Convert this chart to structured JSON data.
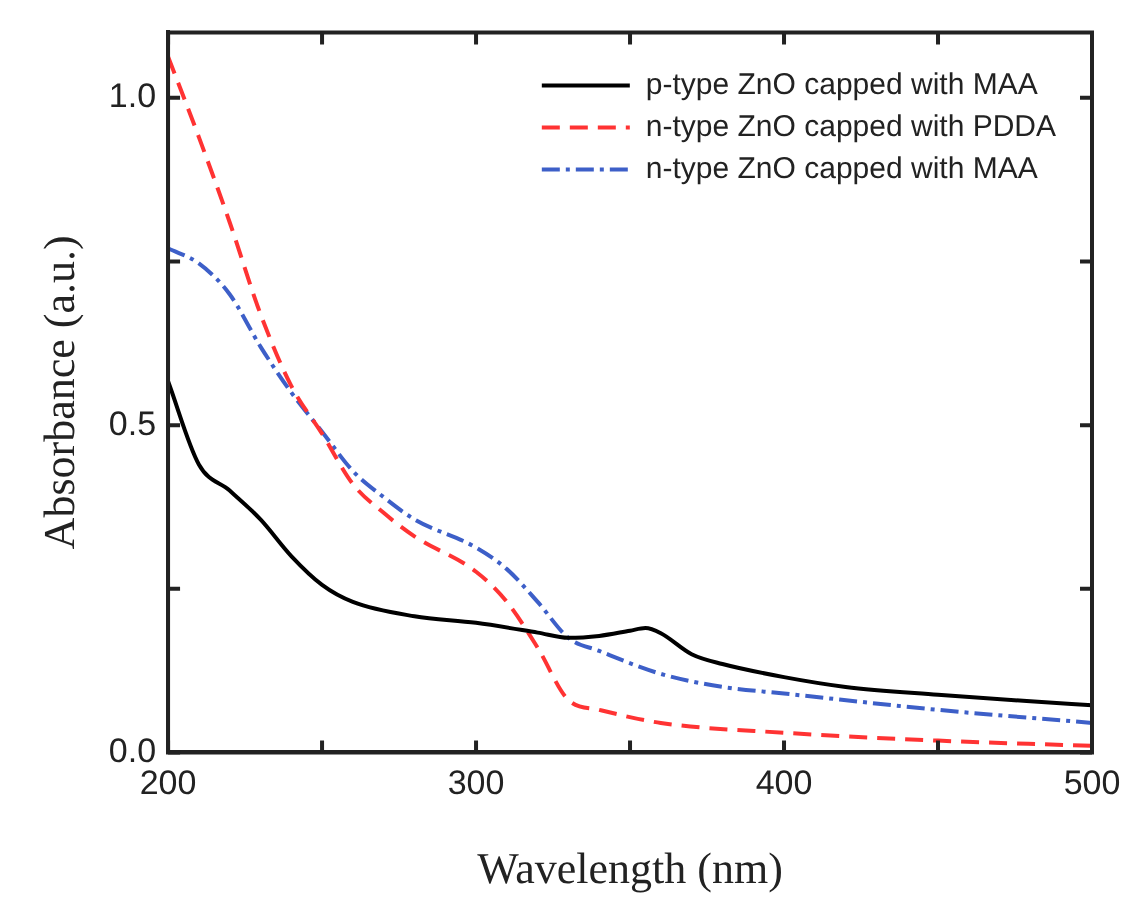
{
  "chart_data": {
    "type": "line",
    "xlabel": "Wavelength (nm)",
    "ylabel": "Absorbance (a.u.)",
    "xlim": [
      200,
      500
    ],
    "xticks": [
      200,
      {
        "value": 250,
        "label": null
      },
      300,
      {
        "value": 350,
        "label": null
      },
      400,
      {
        "value": 450,
        "label": null
      },
      500
    ],
    "ylim": [
      0,
      1.1
    ],
    "yticks": [
      {
        "value": 0,
        "label": "0.0"
      },
      {
        "value": 0.25,
        "label": null
      },
      {
        "value": 0.5,
        "label": "0.5"
      },
      {
        "value": 0.75,
        "label": null
      },
      {
        "value": 1,
        "label": "1.0"
      }
    ],
    "grid": false,
    "legend": "top right",
    "marker": "none",
    "series": [
      {
        "name": "p-type ZnO capped with MAA",
        "color": "#000000",
        "line_style": "solid",
        "x": [
          200,
          210,
          220,
          230,
          240,
          250,
          260,
          280,
          300,
          320,
          330,
          340,
          350,
          355,
          360,
          370,
          380,
          400,
          420,
          450,
          480,
          500
        ],
        "values": [
          0.567,
          0.44,
          0.4,
          0.356,
          0.3,
          0.256,
          0.23,
          0.208,
          0.198,
          0.183,
          0.175,
          0.178,
          0.186,
          0.19,
          0.182,
          0.15,
          0.135,
          0.115,
          0.1,
          0.088,
          0.078,
          0.072
        ]
      },
      {
        "name": "n-type ZnO capped with PDDA",
        "color": "#ff3333",
        "line_style": "dashed",
        "x": [
          200,
          210,
          220,
          230,
          240,
          250,
          260,
          270,
          280,
          300,
          310,
          320,
          330,
          340,
          360,
          400,
          450,
          500
        ],
        "values": [
          1.063,
          0.94,
          0.81,
          0.67,
          0.56,
          0.487,
          0.41,
          0.366,
          0.33,
          0.276,
          0.23,
          0.16,
          0.08,
          0.065,
          0.045,
          0.03,
          0.018,
          0.01
        ]
      },
      {
        "name": "n-type ZnO capped with MAA",
        "color": "#3d5fc8",
        "line_style": "dashdot",
        "x": [
          200,
          210,
          220,
          230,
          240,
          250,
          260,
          270,
          280,
          300,
          310,
          320,
          330,
          340,
          360,
          380,
          400,
          450,
          500
        ],
        "values": [
          0.77,
          0.747,
          0.7,
          0.62,
          0.55,
          0.49,
          0.43,
          0.39,
          0.356,
          0.313,
          0.28,
          0.23,
          0.175,
          0.155,
          0.12,
          0.1,
          0.09,
          0.065,
          0.045
        ]
      }
    ]
  }
}
